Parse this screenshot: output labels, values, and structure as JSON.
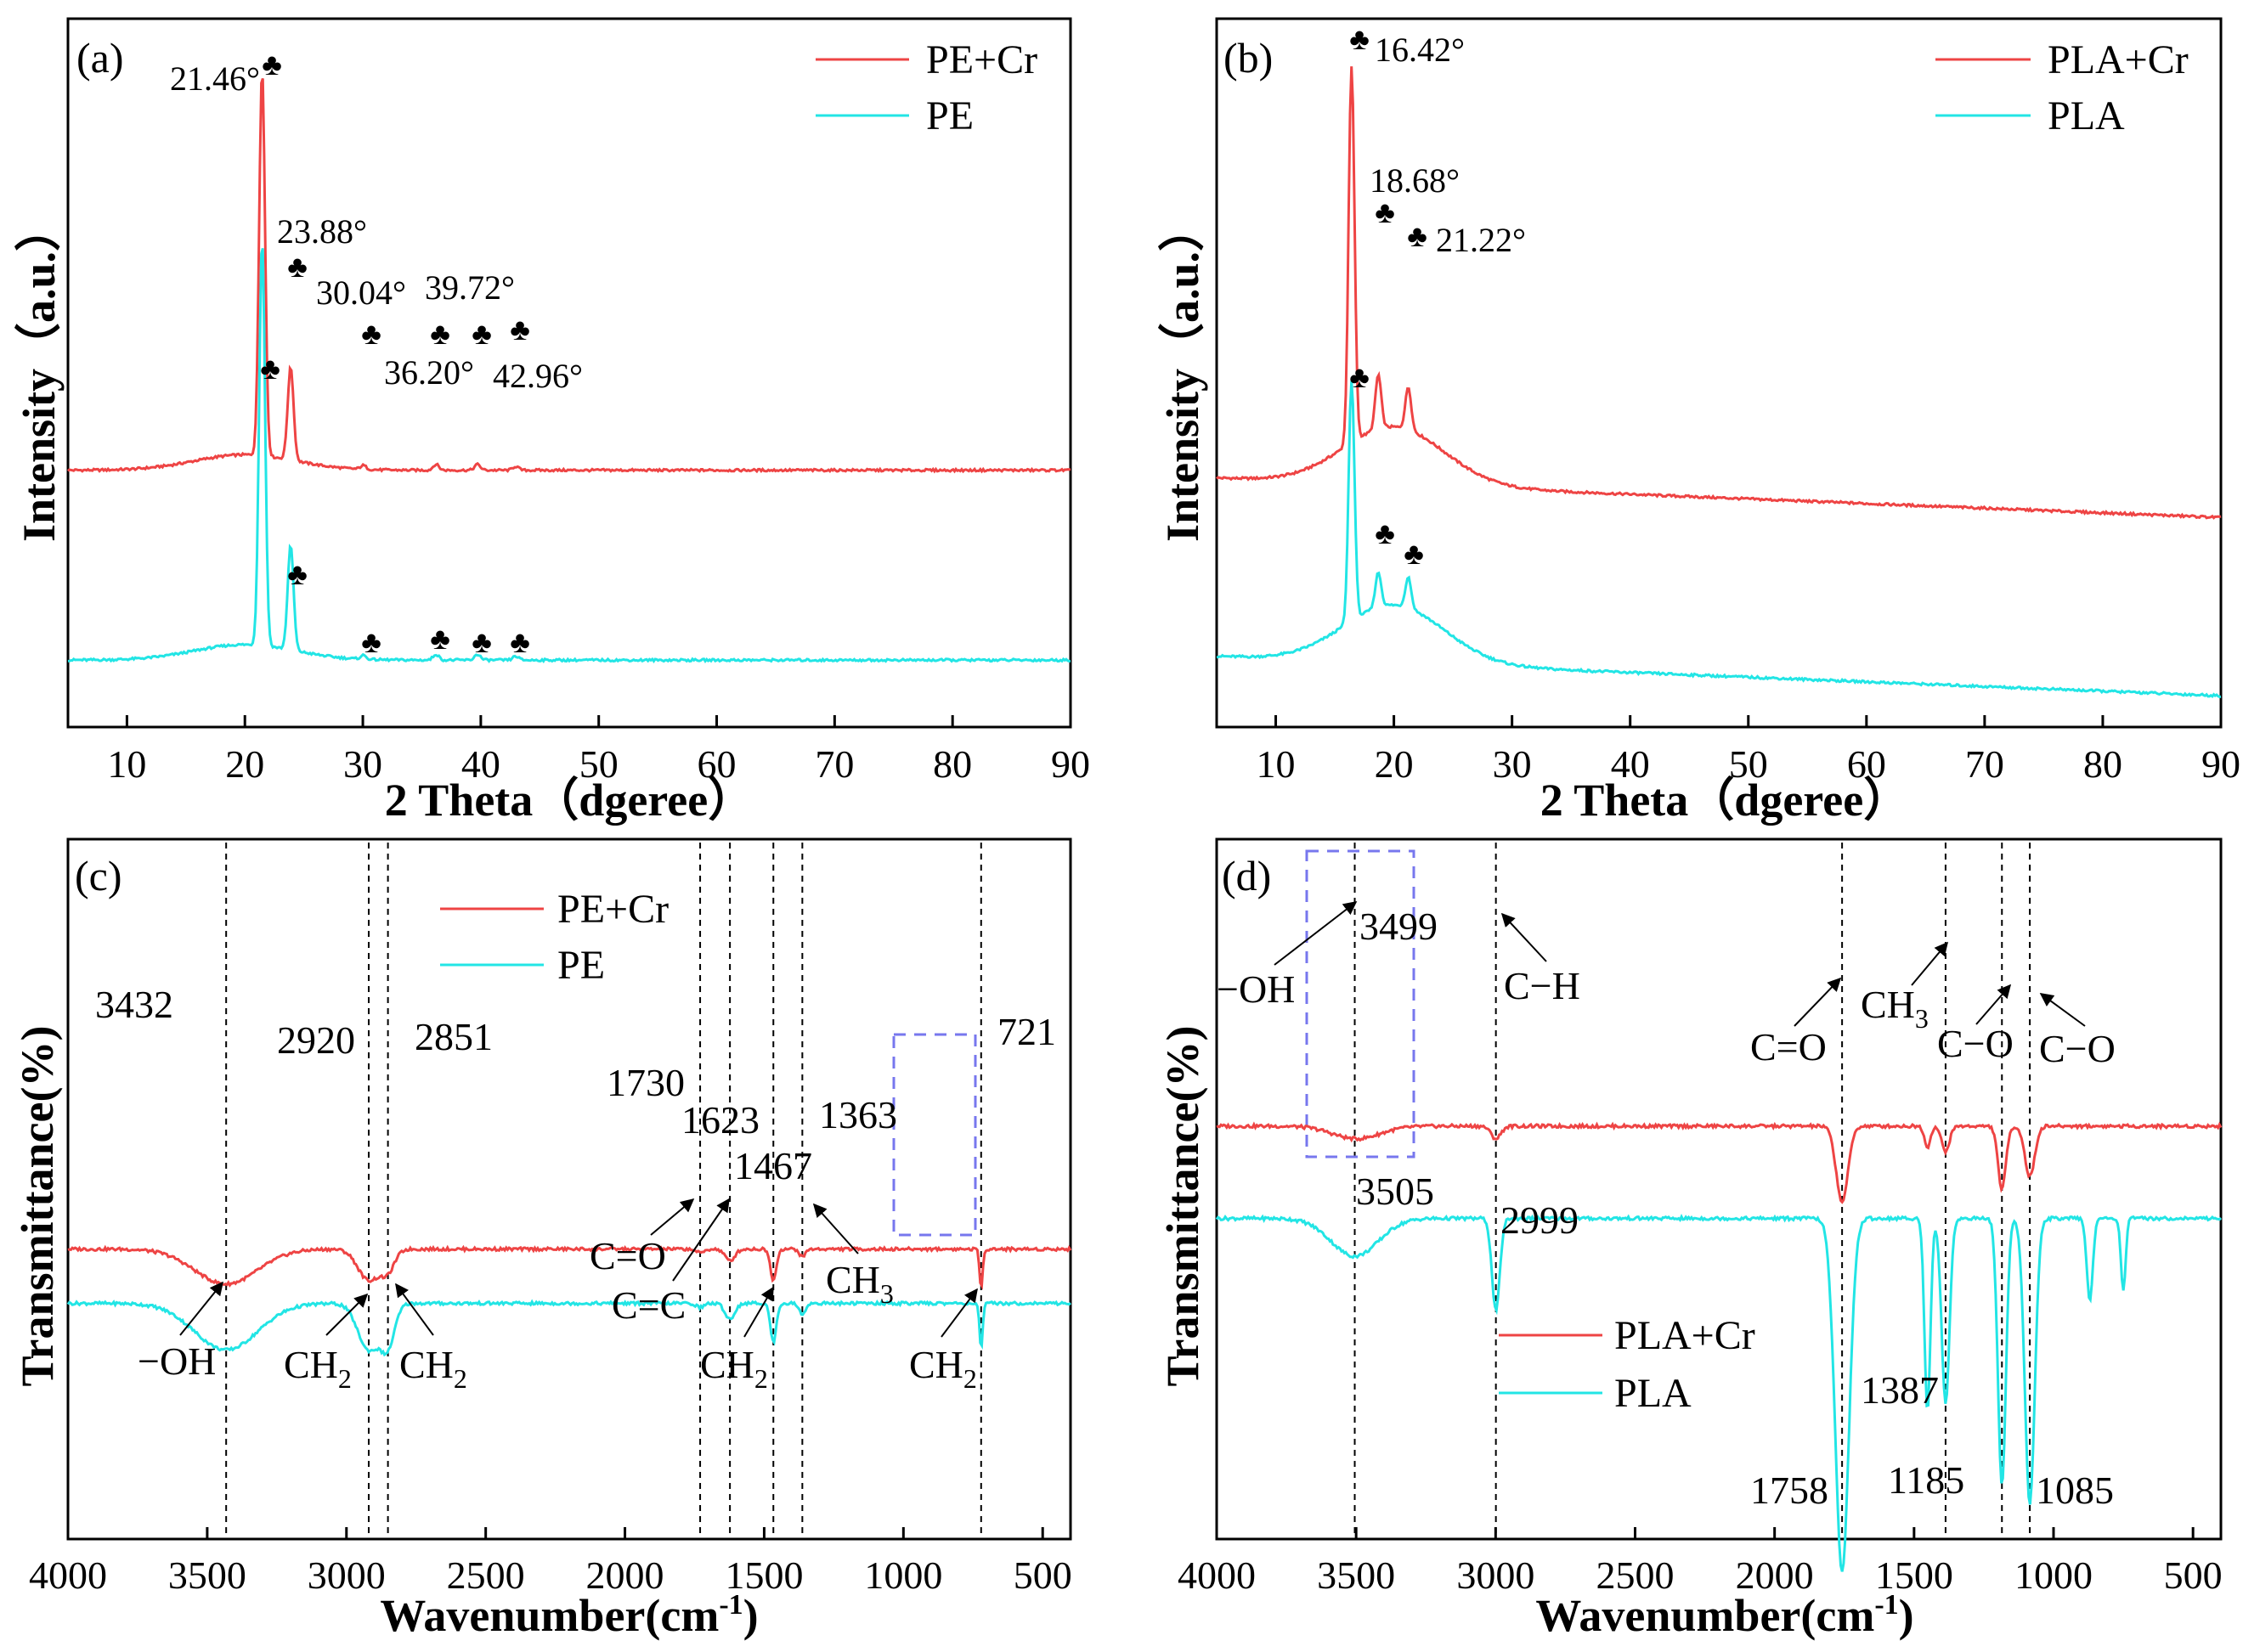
{
  "colors": {
    "treated": "#ee4444",
    "pristine": "#22e5e5",
    "dash": "#000000",
    "box": "#7777ee"
  },
  "chart_data": [
    {
      "id": "a",
      "type": "line",
      "panel_label": "(a)",
      "xlabel": "2 Theta（dgeree）",
      "ylabel": "Intensity（a.u.）",
      "xlim": [
        5,
        90
      ],
      "xticks": [
        10,
        20,
        30,
        40,
        50,
        60,
        70,
        80,
        90
      ],
      "series": [
        {
          "name": "PE+Cr",
          "color": "#ee4444",
          "baseline": 0.54,
          "slope": 0.0,
          "hump": 0.04,
          "peaks": [
            [
              21.46,
              1.0
            ],
            [
              23.88,
              0.24
            ],
            [
              30.04,
              0.01
            ],
            [
              36.2,
              0.015
            ],
            [
              39.72,
              0.015
            ],
            [
              42.96,
              0.01
            ]
          ]
        },
        {
          "name": "PE",
          "color": "#22e5e5",
          "baseline": 0.05,
          "slope": 0.0,
          "hump": 0.04,
          "peaks": [
            [
              21.46,
              1.05
            ],
            [
              23.88,
              0.27
            ],
            [
              30.04,
              0.01
            ],
            [
              36.2,
              0.015
            ],
            [
              39.72,
              0.015
            ],
            [
              42.96,
              0.01
            ]
          ]
        }
      ],
      "peak_labels": [
        {
          "text": "21.46°",
          "x": 21.46
        },
        {
          "text": "23.88°",
          "x": 23.88
        },
        {
          "text": "30.04°",
          "x": 30.04
        },
        {
          "text": "39.72°",
          "x": 39.72
        },
        {
          "text": "36.20°",
          "x": 36.2
        },
        {
          "text": "42.96°",
          "x": 42.96
        }
      ],
      "marker_glyph": "♣"
    },
    {
      "id": "b",
      "type": "line",
      "panel_label": "(b)",
      "xlabel": "2 Theta（dgeree）",
      "ylabel": "Intensity（a.u.）",
      "xlim": [
        5,
        90
      ],
      "xticks": [
        10,
        20,
        30,
        40,
        50,
        60,
        70,
        80,
        90
      ],
      "series": [
        {
          "name": "PLA+Cr",
          "color": "#ee4444",
          "baseline": 0.52,
          "slope": 0.0012,
          "hump": 0.15,
          "peaks": [
            [
              16.42,
              0.97
            ],
            [
              18.68,
              0.14
            ],
            [
              21.22,
              0.11
            ]
          ]
        },
        {
          "name": "PLA",
          "color": "#22e5e5",
          "baseline": 0.06,
          "slope": 0.0012,
          "hump": 0.15,
          "peaks": [
            [
              16.42,
              0.62
            ],
            [
              18.68,
              0.09
            ],
            [
              21.22,
              0.08
            ]
          ]
        }
      ],
      "peak_labels": [
        {
          "text": "16.42°",
          "x": 16.42
        },
        {
          "text": "18.68°",
          "x": 18.68
        },
        {
          "text": "21.22°",
          "x": 21.22
        }
      ],
      "marker_glyph": "♣"
    },
    {
      "id": "c",
      "type": "line",
      "panel_label": "(c)",
      "xlabel": "Wavenumber(cm",
      "xlabel_sup": "-1",
      "xlabel_end": ")",
      "ylabel": "Transmittance(%)",
      "xlim": [
        4000,
        400
      ],
      "xticks": [
        4000,
        3500,
        3000,
        2500,
        2000,
        1500,
        1000,
        500
      ],
      "series": [
        {
          "name": "PE+Cr",
          "color": "#ee4444",
          "baseline": 0.7,
          "bands": [
            [
              3432,
              0.09,
              160
            ],
            [
              2920,
              0.08,
              55
            ],
            [
              2851,
              0.05,
              35
            ],
            [
              1730,
              0.01,
              20
            ],
            [
              1623,
              0.03,
              25
            ],
            [
              1467,
              0.08,
              15
            ],
            [
              1363,
              0.02,
              15
            ],
            [
              721,
              0.1,
              8
            ]
          ]
        },
        {
          "name": "PE",
          "color": "#22e5e5",
          "baseline": 0.56,
          "bands": [
            [
              3432,
              0.12,
              160
            ],
            [
              2920,
              0.12,
              55
            ],
            [
              2851,
              0.1,
              35
            ],
            [
              1730,
              0.01,
              20
            ],
            [
              1623,
              0.04,
              25
            ],
            [
              1467,
              0.1,
              15
            ],
            [
              1363,
              0.03,
              15
            ],
            [
              721,
              0.12,
              8
            ]
          ]
        }
      ],
      "vlines": [
        3432,
        2920,
        2851,
        1730,
        1623,
        1467,
        1363,
        721
      ],
      "numbers": [
        "3432",
        "2920",
        "2851",
        "1730",
        "1623",
        "1467",
        "1363",
        "721"
      ],
      "groups": [
        "−OH",
        "CH",
        "CH",
        "C=O",
        "C=C",
        "CH",
        "CH",
        "CH"
      ],
      "sub2": "2",
      "sub3": "3"
    },
    {
      "id": "d",
      "type": "line",
      "panel_label": "(d)",
      "xlabel": "Wavenumber(cm",
      "xlabel_sup": "-1",
      "xlabel_end": ")",
      "ylabel": "Transmittance(%)",
      "xlim": [
        4000,
        400
      ],
      "xticks": [
        4000,
        3500,
        3000,
        2500,
        2000,
        1500,
        1000,
        500
      ],
      "series": [
        {
          "name": "PLA+Cr",
          "color": "#ee4444",
          "baseline": 0.94,
          "bands": [
            [
              3499,
              0.03,
              120
            ],
            [
              2999,
              0.03,
              25
            ],
            [
              1758,
              0.18,
              30
            ],
            [
              1452,
              0.05,
              15
            ],
            [
              1387,
              0.06,
              20
            ],
            [
              1185,
              0.15,
              20
            ],
            [
              1085,
              0.12,
              25
            ]
          ]
        },
        {
          "name": "PLA",
          "color": "#22e5e5",
          "baseline": 0.72,
          "bands": [
            [
              3505,
              0.09,
              120
            ],
            [
              2999,
              0.22,
              20
            ],
            [
              1758,
              0.84,
              35
            ],
            [
              1452,
              0.46,
              15
            ],
            [
              1387,
              0.44,
              20
            ],
            [
              1185,
              0.64,
              20
            ],
            [
              1085,
              0.68,
              25
            ],
            [
              870,
              0.2,
              15
            ],
            [
              750,
              0.17,
              12
            ]
          ]
        }
      ],
      "vlines": [
        3505,
        2999,
        1758,
        1387,
        1185,
        1085
      ],
      "numbers": [
        "3499",
        "3505",
        "2999",
        "1758",
        "1387",
        "1185",
        "1085"
      ],
      "groups": [
        "−OH",
        "C−H",
        "C=O",
        "CH",
        "C−O",
        "C−O"
      ],
      "sub3": "3"
    }
  ]
}
